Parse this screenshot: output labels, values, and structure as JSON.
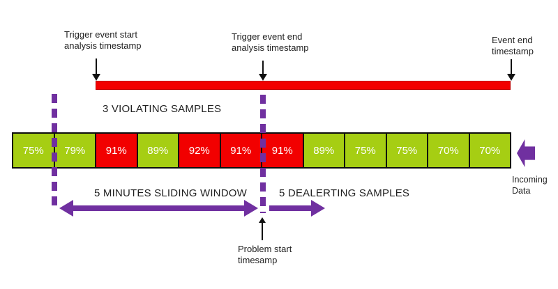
{
  "diagram": {
    "title": "Alerting sliding-window diagram",
    "colors": {
      "green": "#A6CE13",
      "red": "#F20000",
      "purple": "#7030A0",
      "ink": "#1F1F1F",
      "barBorder": "#C00000"
    },
    "labels": {
      "trigger_start_line1": "Trigger event start",
      "trigger_start_line2": "analysis timestamp",
      "trigger_end_line1": "Trigger event end",
      "trigger_end_line2": "analysis timestamp",
      "event_end_line1": "Event end",
      "event_end_line2": "timestamp",
      "violating": "3 VIOLATING SAMPLES",
      "sliding_window": "5 MINUTES SLIDING WINDOW",
      "dealerting": "5 DEALERTING SAMPLES",
      "problem_line1": "Problem start",
      "problem_line2": "timesamp",
      "incoming_line1": "Incoming",
      "incoming_line2": "Data"
    },
    "samples": [
      {
        "value": "75%",
        "status": "ok"
      },
      {
        "value": "79%",
        "status": "ok"
      },
      {
        "value": "91%",
        "status": "violating"
      },
      {
        "value": "89%",
        "status": "ok"
      },
      {
        "value": "92%",
        "status": "violating"
      },
      {
        "value": "91%",
        "status": "violating"
      },
      {
        "value": "91%",
        "status": "violating"
      },
      {
        "value": "89%",
        "status": "ok"
      },
      {
        "value": "75%",
        "status": "ok"
      },
      {
        "value": "75%",
        "status": "ok"
      },
      {
        "value": "70%",
        "status": "ok"
      },
      {
        "value": "70%",
        "status": "ok"
      }
    ]
  }
}
